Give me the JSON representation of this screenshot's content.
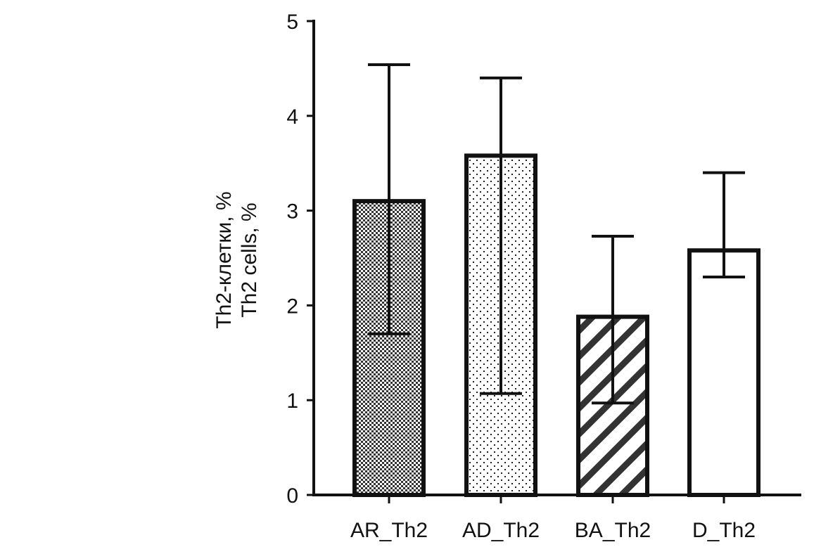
{
  "chart_data": {
    "type": "bar",
    "categories": [
      "AR_Th2",
      "AD_Th2",
      "BA_Th2",
      "D_Th2"
    ],
    "values": [
      3.1,
      3.58,
      1.88,
      2.58
    ],
    "error_low": [
      1.7,
      1.07,
      0.97,
      2.3
    ],
    "error_high": [
      4.54,
      4.4,
      2.73,
      3.4
    ],
    "patterns": [
      "checker",
      "dots",
      "diagonal-stripes",
      "none"
    ],
    "ylabel_lines": [
      "Th2-клетки, %",
      "Th2 cells, %"
    ],
    "yticks": [
      "0",
      "1",
      "2",
      "3",
      "4",
      "5"
    ],
    "ylim": [
      0,
      5
    ],
    "grid": false,
    "legend": "none",
    "colors": {
      "stroke": "#111111",
      "fill": "#ffffff"
    }
  }
}
